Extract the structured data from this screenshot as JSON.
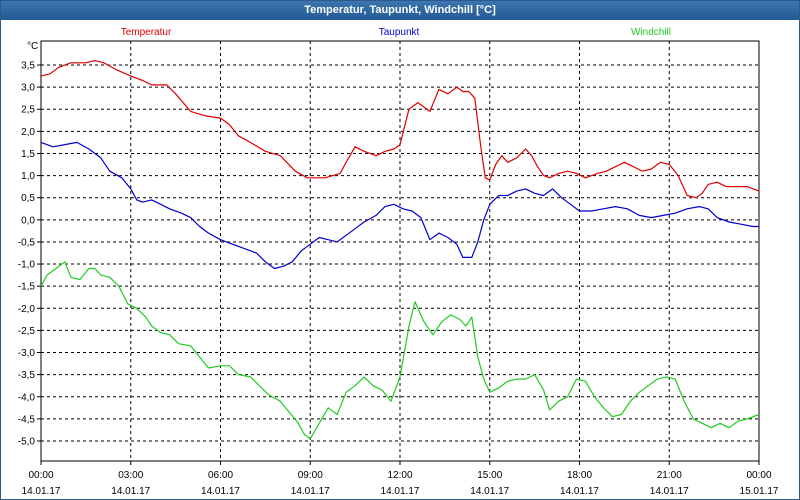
{
  "window": {
    "title": "Temperatur, Taupunkt, Windchill [°C]"
  },
  "chart_data": {
    "type": "line",
    "title": "Temperatur, Taupunkt, Windchill [°C]",
    "ylabel": "°C",
    "ylim": [
      -5.5,
      4.0
    ],
    "y_ticks": [
      "3,5",
      "3,0",
      "2,5",
      "2,0",
      "1,5",
      "1,0",
      "0,5",
      "0,0",
      "-0,5",
      "-1,0",
      "-1,5",
      "-2,0",
      "-2,5",
      "-3,0",
      "-3,5",
      "-4,0",
      "-4,5",
      "-5,0"
    ],
    "x_range_hours": [
      0,
      24
    ],
    "x_ticks": [
      {
        "time": "00:00",
        "date": "14.01.17"
      },
      {
        "time": "03:00",
        "date": "14.01.17"
      },
      {
        "time": "06:00",
        "date": "14.01.17"
      },
      {
        "time": "09:00",
        "date": "14.01.17"
      },
      {
        "time": "12:00",
        "date": "14.01.17"
      },
      {
        "time": "15:00",
        "date": "14.01.17"
      },
      {
        "time": "18:00",
        "date": "14.01.17"
      },
      {
        "time": "21:00",
        "date": "14.01.17"
      },
      {
        "time": "00:00",
        "date": "15.01.17"
      }
    ],
    "grid": true,
    "legend": "top",
    "series": [
      {
        "name": "Temperatur",
        "color": "#e00000",
        "points": [
          [
            0,
            3.25
          ],
          [
            0.3,
            3.3
          ],
          [
            0.6,
            3.45
          ],
          [
            1,
            3.55
          ],
          [
            1.5,
            3.55
          ],
          [
            1.8,
            3.6
          ],
          [
            2.1,
            3.55
          ],
          [
            2.5,
            3.4
          ],
          [
            3,
            3.25
          ],
          [
            3.4,
            3.15
          ],
          [
            3.7,
            3.05
          ],
          [
            4.2,
            3.05
          ],
          [
            4.5,
            2.85
          ],
          [
            5,
            2.45
          ],
          [
            5.5,
            2.35
          ],
          [
            6,
            2.3
          ],
          [
            6.3,
            2.15
          ],
          [
            6.6,
            1.9
          ],
          [
            7,
            1.75
          ],
          [
            7.5,
            1.55
          ],
          [
            8,
            1.45
          ],
          [
            8.5,
            1.1
          ],
          [
            8.9,
            0.95
          ],
          [
            9.2,
            0.95
          ],
          [
            9.5,
            0.95
          ],
          [
            10,
            1.05
          ],
          [
            10.2,
            1.3
          ],
          [
            10.5,
            1.65
          ],
          [
            10.8,
            1.55
          ],
          [
            11.2,
            1.45
          ],
          [
            11.5,
            1.55
          ],
          [
            11.8,
            1.6
          ],
          [
            12,
            1.7
          ],
          [
            12.3,
            2.5
          ],
          [
            12.6,
            2.65
          ],
          [
            12.8,
            2.55
          ],
          [
            13,
            2.45
          ],
          [
            13.3,
            2.95
          ],
          [
            13.6,
            2.85
          ],
          [
            13.9,
            3.0
          ],
          [
            14.1,
            2.9
          ],
          [
            14.3,
            2.9
          ],
          [
            14.5,
            2.75
          ],
          [
            14.7,
            1.65
          ],
          [
            14.85,
            0.95
          ],
          [
            15.0,
            0.9
          ],
          [
            15.2,
            1.25
          ],
          [
            15.4,
            1.45
          ],
          [
            15.6,
            1.3
          ],
          [
            15.9,
            1.4
          ],
          [
            16.2,
            1.6
          ],
          [
            16.4,
            1.45
          ],
          [
            16.6,
            1.2
          ],
          [
            16.8,
            1.0
          ],
          [
            17,
            0.95
          ],
          [
            17.3,
            1.05
          ],
          [
            17.6,
            1.1
          ],
          [
            17.9,
            1.05
          ],
          [
            18.2,
            0.95
          ],
          [
            18.6,
            1.05
          ],
          [
            18.9,
            1.1
          ],
          [
            19.2,
            1.2
          ],
          [
            19.5,
            1.3
          ],
          [
            19.8,
            1.2
          ],
          [
            20.1,
            1.1
          ],
          [
            20.4,
            1.15
          ],
          [
            20.7,
            1.3
          ],
          [
            21.0,
            1.25
          ],
          [
            21.3,
            1.0
          ],
          [
            21.6,
            0.55
          ],
          [
            21.9,
            0.5
          ],
          [
            22.1,
            0.6
          ],
          [
            22.3,
            0.8
          ],
          [
            22.6,
            0.85
          ],
          [
            22.9,
            0.75
          ],
          [
            23.3,
            0.75
          ],
          [
            23.6,
            0.75
          ],
          [
            24,
            0.65
          ]
        ]
      },
      {
        "name": "Taupunkt",
        "color": "#0000cc",
        "points": [
          [
            0,
            1.75
          ],
          [
            0.4,
            1.65
          ],
          [
            0.8,
            1.7
          ],
          [
            1.2,
            1.75
          ],
          [
            1.6,
            1.6
          ],
          [
            2,
            1.4
          ],
          [
            2.3,
            1.1
          ],
          [
            2.7,
            0.95
          ],
          [
            3,
            0.7
          ],
          [
            3.2,
            0.45
          ],
          [
            3.4,
            0.4
          ],
          [
            3.7,
            0.45
          ],
          [
            4,
            0.35
          ],
          [
            4.3,
            0.25
          ],
          [
            4.7,
            0.15
          ],
          [
            5,
            0.05
          ],
          [
            5.3,
            -0.15
          ],
          [
            5.6,
            -0.3
          ],
          [
            6,
            -0.45
          ],
          [
            6.4,
            -0.55
          ],
          [
            6.8,
            -0.65
          ],
          [
            7.2,
            -0.75
          ],
          [
            7.5,
            -0.95
          ],
          [
            7.8,
            -1.1
          ],
          [
            8.1,
            -1.05
          ],
          [
            8.4,
            -0.95
          ],
          [
            8.7,
            -0.7
          ],
          [
            9,
            -0.55
          ],
          [
            9.3,
            -0.4
          ],
          [
            9.6,
            -0.45
          ],
          [
            9.9,
            -0.5
          ],
          [
            10.2,
            -0.35
          ],
          [
            10.5,
            -0.2
          ],
          [
            10.8,
            -0.05
          ],
          [
            11.2,
            0.1
          ],
          [
            11.5,
            0.3
          ],
          [
            11.8,
            0.35
          ],
          [
            12.1,
            0.25
          ],
          [
            12.4,
            0.2
          ],
          [
            12.7,
            0.05
          ],
          [
            13,
            -0.45
          ],
          [
            13.3,
            -0.3
          ],
          [
            13.6,
            -0.4
          ],
          [
            13.9,
            -0.55
          ],
          [
            14.1,
            -0.85
          ],
          [
            14.4,
            -0.85
          ],
          [
            14.6,
            -0.5
          ],
          [
            14.8,
            0.0
          ],
          [
            15.0,
            0.35
          ],
          [
            15.3,
            0.55
          ],
          [
            15.6,
            0.55
          ],
          [
            15.9,
            0.65
          ],
          [
            16.2,
            0.7
          ],
          [
            16.5,
            0.6
          ],
          [
            16.8,
            0.55
          ],
          [
            17.1,
            0.7
          ],
          [
            17.4,
            0.5
          ],
          [
            17.7,
            0.35
          ],
          [
            18.0,
            0.2
          ],
          [
            18.4,
            0.2
          ],
          [
            18.8,
            0.25
          ],
          [
            19.2,
            0.3
          ],
          [
            19.6,
            0.25
          ],
          [
            20,
            0.1
          ],
          [
            20.4,
            0.05
          ],
          [
            20.8,
            0.1
          ],
          [
            21.2,
            0.15
          ],
          [
            21.6,
            0.25
          ],
          [
            22,
            0.3
          ],
          [
            22.3,
            0.25
          ],
          [
            22.6,
            0.05
          ],
          [
            23,
            -0.05
          ],
          [
            23.4,
            -0.1
          ],
          [
            23.8,
            -0.15
          ],
          [
            24,
            -0.15
          ]
        ]
      },
      {
        "name": "Windchill",
        "color": "#22cc22",
        "points": [
          [
            0,
            -1.5
          ],
          [
            0.2,
            -1.25
          ],
          [
            0.5,
            -1.1
          ],
          [
            0.8,
            -0.95
          ],
          [
            1,
            -1.3
          ],
          [
            1.3,
            -1.35
          ],
          [
            1.6,
            -1.1
          ],
          [
            1.8,
            -1.1
          ],
          [
            2,
            -1.25
          ],
          [
            2.3,
            -1.3
          ],
          [
            2.6,
            -1.5
          ],
          [
            2.9,
            -1.9
          ],
          [
            3.2,
            -2.0
          ],
          [
            3.5,
            -2.2
          ],
          [
            3.7,
            -2.4
          ],
          [
            4,
            -2.55
          ],
          [
            4.3,
            -2.6
          ],
          [
            4.6,
            -2.8
          ],
          [
            5,
            -2.85
          ],
          [
            5.3,
            -3.1
          ],
          [
            5.6,
            -3.35
          ],
          [
            6,
            -3.3
          ],
          [
            6.3,
            -3.3
          ],
          [
            6.6,
            -3.5
          ],
          [
            7,
            -3.55
          ],
          [
            7.3,
            -3.75
          ],
          [
            7.6,
            -3.95
          ],
          [
            8,
            -4.1
          ],
          [
            8.3,
            -4.35
          ],
          [
            8.6,
            -4.6
          ],
          [
            8.8,
            -4.85
          ],
          [
            9,
            -4.95
          ],
          [
            9.3,
            -4.6
          ],
          [
            9.6,
            -4.25
          ],
          [
            9.9,
            -4.4
          ],
          [
            10.2,
            -3.9
          ],
          [
            10.5,
            -3.75
          ],
          [
            10.8,
            -3.55
          ],
          [
            11.1,
            -3.75
          ],
          [
            11.4,
            -3.85
          ],
          [
            11.7,
            -4.1
          ],
          [
            12,
            -3.55
          ],
          [
            12.3,
            -2.4
          ],
          [
            12.5,
            -1.85
          ],
          [
            12.8,
            -2.3
          ],
          [
            13.1,
            -2.6
          ],
          [
            13.4,
            -2.3
          ],
          [
            13.7,
            -2.15
          ],
          [
            14,
            -2.25
          ],
          [
            14.2,
            -2.4
          ],
          [
            14.4,
            -2.2
          ],
          [
            14.6,
            -3.1
          ],
          [
            14.8,
            -3.6
          ],
          [
            15.0,
            -3.9
          ],
          [
            15.3,
            -3.8
          ],
          [
            15.6,
            -3.65
          ],
          [
            15.9,
            -3.6
          ],
          [
            16.2,
            -3.6
          ],
          [
            16.5,
            -3.5
          ],
          [
            16.8,
            -3.85
          ],
          [
            17,
            -4.3
          ],
          [
            17.3,
            -4.1
          ],
          [
            17.6,
            -4.0
          ],
          [
            17.9,
            -3.6
          ],
          [
            18.2,
            -3.65
          ],
          [
            18.5,
            -4.0
          ],
          [
            18.8,
            -4.25
          ],
          [
            19.1,
            -4.45
          ],
          [
            19.4,
            -4.4
          ],
          [
            19.7,
            -4.1
          ],
          [
            20,
            -3.9
          ],
          [
            20.3,
            -3.75
          ],
          [
            20.6,
            -3.6
          ],
          [
            20.9,
            -3.55
          ],
          [
            21.2,
            -3.6
          ],
          [
            21.5,
            -4.1
          ],
          [
            21.8,
            -4.5
          ],
          [
            22.1,
            -4.6
          ],
          [
            22.4,
            -4.7
          ],
          [
            22.7,
            -4.6
          ],
          [
            23,
            -4.7
          ],
          [
            23.3,
            -4.55
          ],
          [
            23.6,
            -4.5
          ],
          [
            24,
            -4.4
          ]
        ]
      }
    ]
  }
}
